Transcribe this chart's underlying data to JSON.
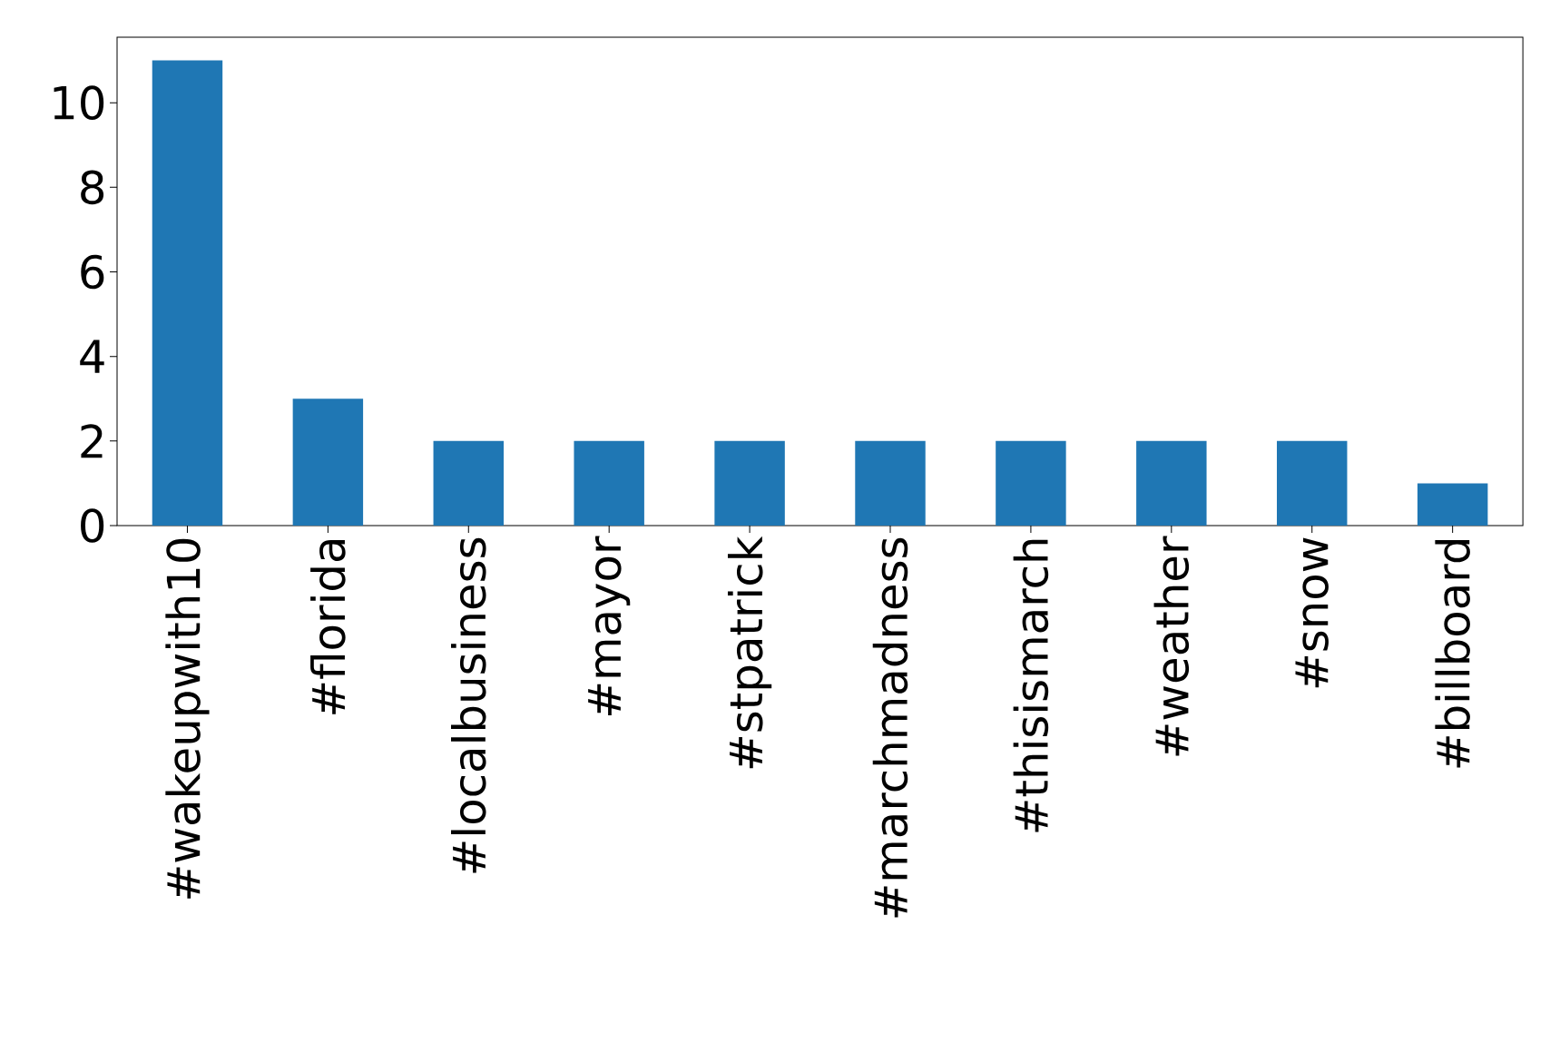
{
  "chart_data": {
    "type": "bar",
    "categories": [
      "#wakeupwith10",
      "#florida",
      "#localbusiness",
      "#mayor",
      "#stpatrick",
      "#marchmadness",
      "#thisismarch",
      "#weather",
      "#snow",
      "#billboard"
    ],
    "values": [
      11,
      3,
      2,
      2,
      2,
      2,
      2,
      2,
      2,
      1
    ],
    "color": "#1f77b4",
    "ylim": [
      0,
      11.55
    ],
    "yticks": [
      0,
      2,
      4,
      6,
      8,
      10
    ]
  }
}
